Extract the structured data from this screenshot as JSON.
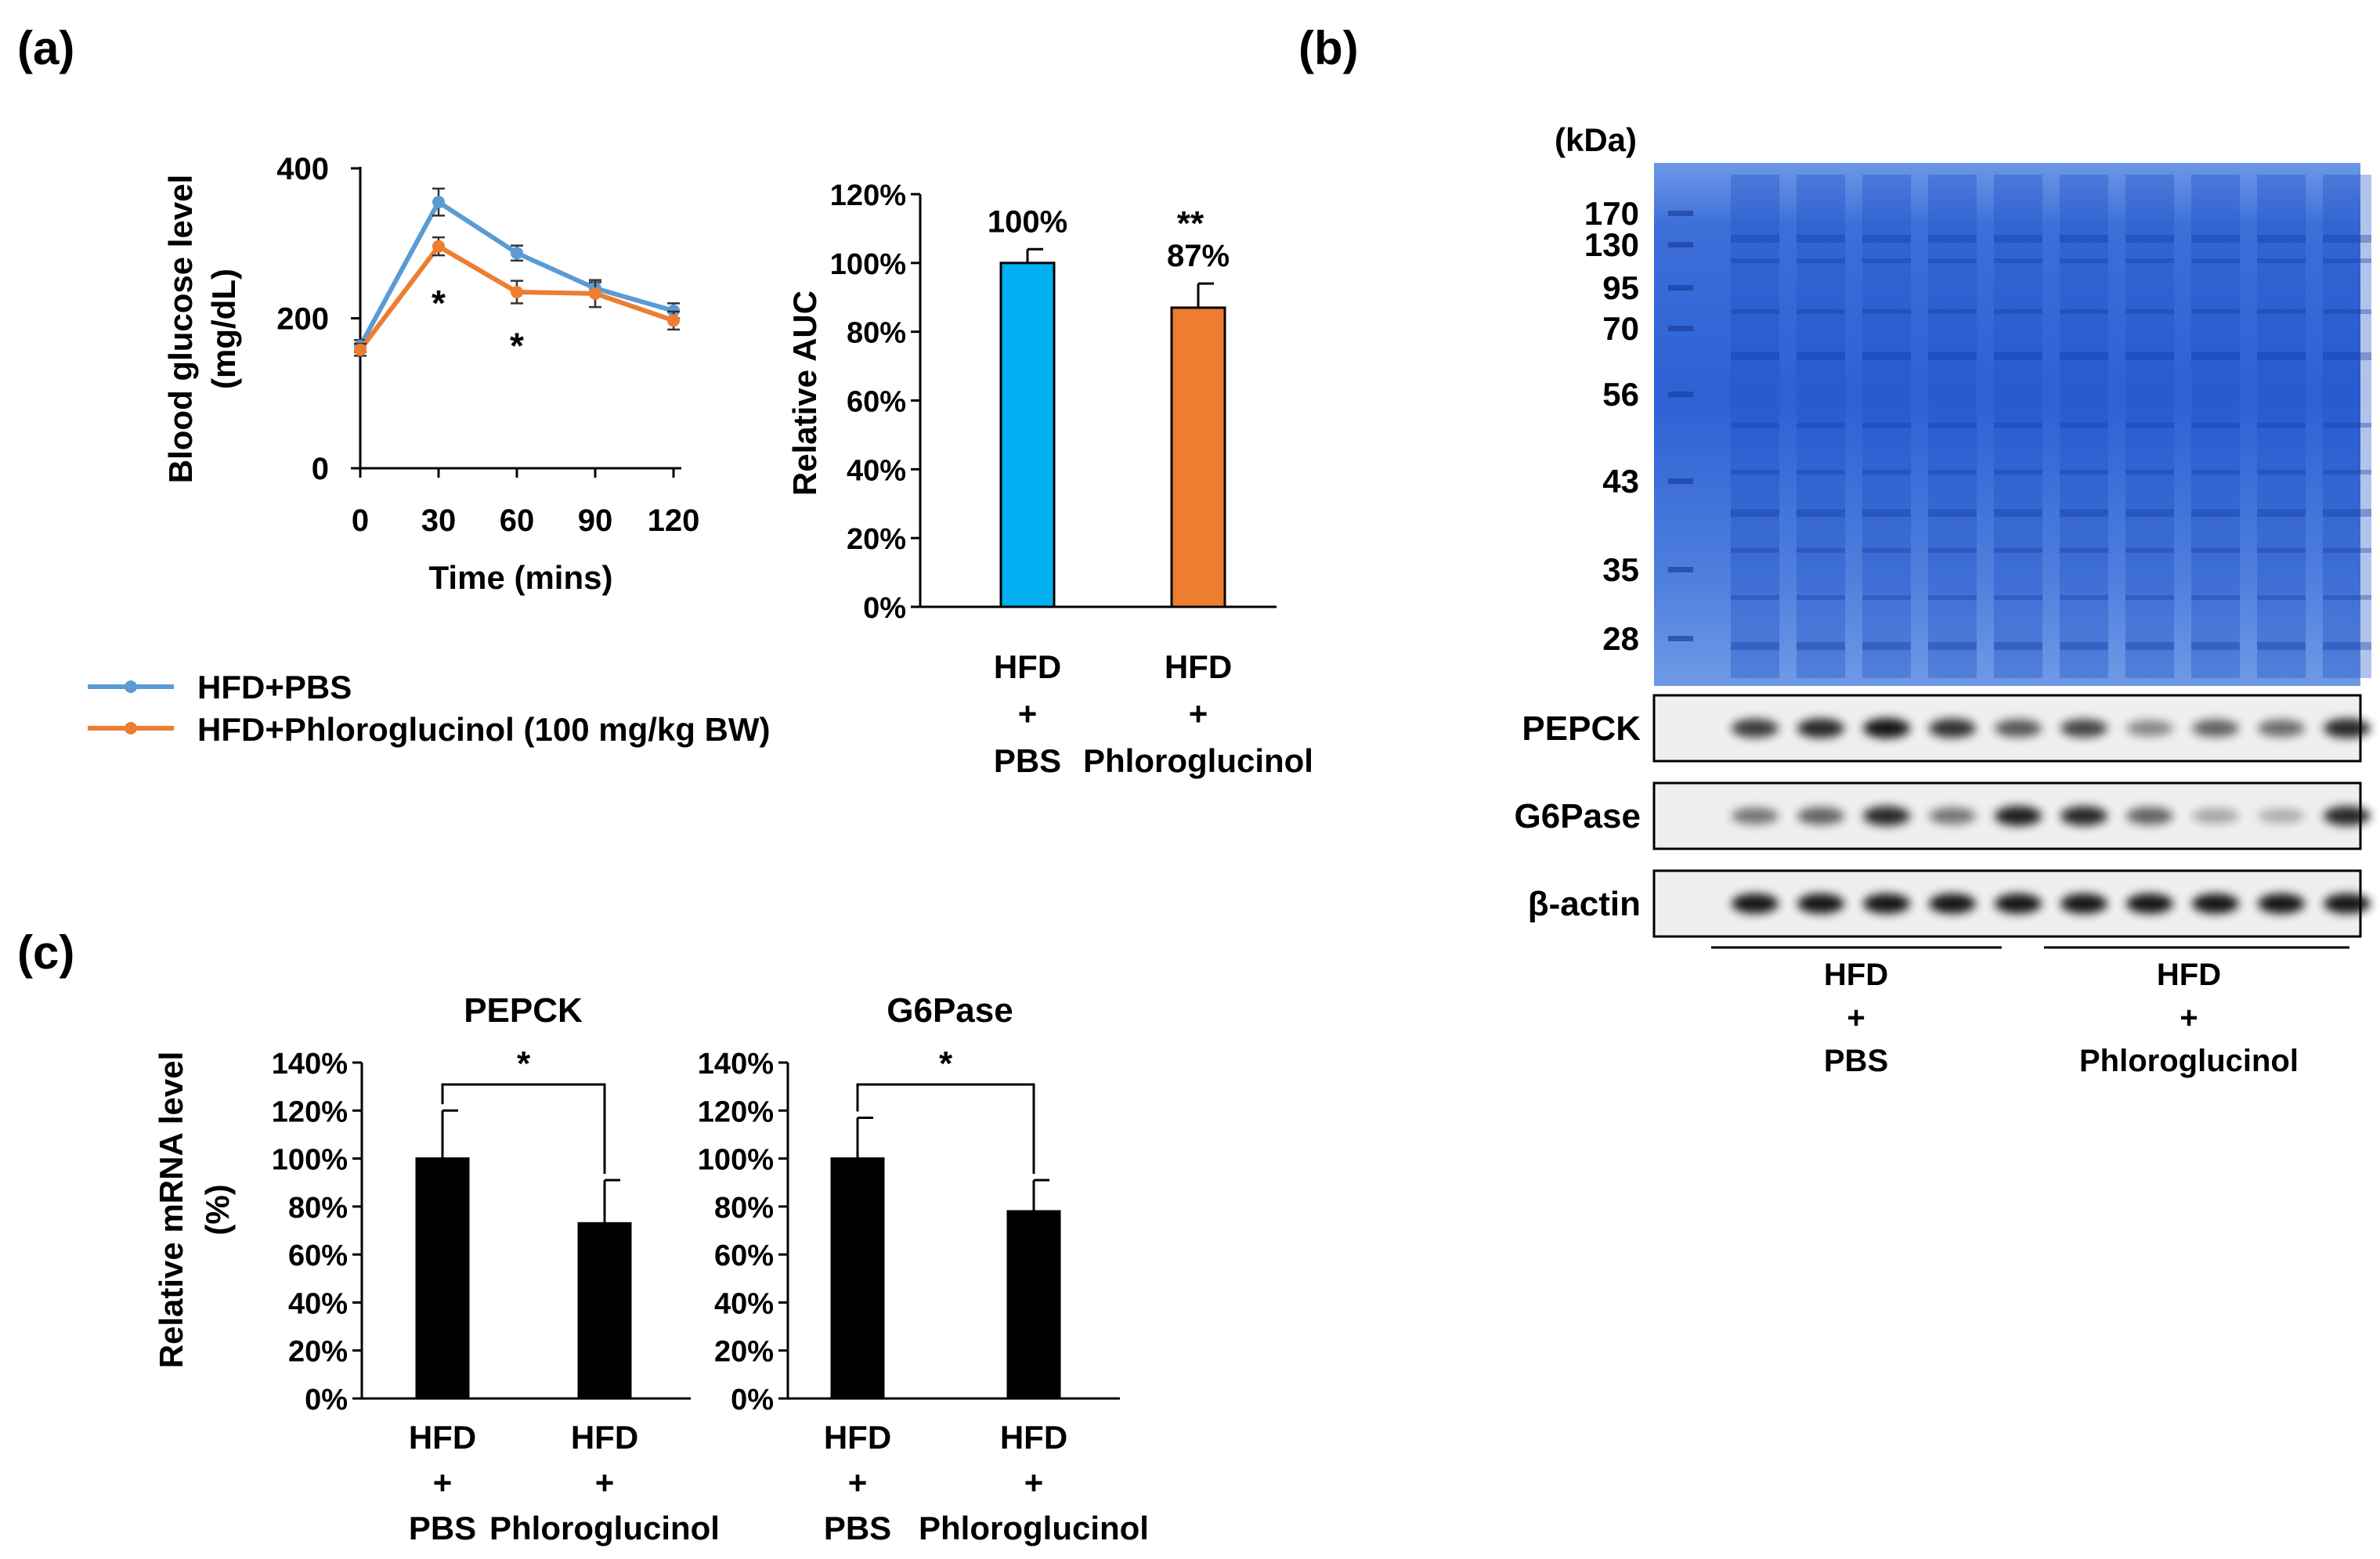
{
  "panels": {
    "a": "(a)",
    "b": "(b)",
    "c": "(c)"
  },
  "colors": {
    "pbs": "#5b9bd5",
    "phloro": "#ed7d31",
    "pbs_bar": "#00b0f0",
    "phloro_bar": "#ed7d31",
    "mrna_bar": "#000000",
    "gel_blue": "#3f73d6"
  },
  "legend": {
    "pbs": "HFD+PBS",
    "phloro": "HFD+Phloroglucinol  (100 mg/kg BW)"
  },
  "chart_data": [
    {
      "id": "ogtt",
      "type": "line",
      "xlabel": "Time  (mins)",
      "ylabel_lines": [
        "Blood glucose level",
        "(mg/dL)"
      ],
      "x": [
        0,
        30,
        60,
        90,
        120
      ],
      "x_ticks": [
        "0",
        "30",
        "60",
        "90",
        "120"
      ],
      "ylim": [
        0,
        400
      ],
      "y_ticks": [
        "0",
        "200",
        "400"
      ],
      "y_tick_values": [
        0,
        200,
        400
      ],
      "series": [
        {
          "name": "HFD+PBS",
          "values": [
            163,
            355,
            287,
            240,
            210
          ],
          "errors": [
            8,
            18,
            10,
            8,
            10
          ]
        },
        {
          "name": "HFD+Phloroglucinol  (100 mg/kg BW)",
          "values": [
            158,
            296,
            235,
            233,
            197
          ],
          "errors": [
            8,
            12,
            15,
            18,
            12
          ]
        }
      ],
      "annotations": [
        {
          "x": 30,
          "y": 235,
          "text": "*"
        },
        {
          "x": 60,
          "y": 178,
          "text": "*"
        }
      ]
    },
    {
      "id": "auc",
      "type": "bar",
      "ylabel": "Relative AUC",
      "ylim": [
        0,
        120
      ],
      "y_ticks": [
        "0%",
        "20%",
        "40%",
        "60%",
        "80%",
        "100%",
        "120%"
      ],
      "y_tick_values": [
        0,
        20,
        40,
        60,
        80,
        100,
        120
      ],
      "category_lines": [
        [
          "HFD",
          "+",
          "PBS"
        ],
        [
          "HFD",
          "+",
          "Phloroglucinol"
        ]
      ],
      "values": [
        100,
        87
      ],
      "errors": [
        4,
        7
      ],
      "data_labels": [
        "100%",
        "87%"
      ],
      "significance": [
        "",
        "**"
      ]
    },
    {
      "id": "pepck_mrna",
      "type": "bar",
      "title": "PEPCK",
      "ylabel_lines": [
        "Relative mRNA level",
        "(%)"
      ],
      "ylim": [
        0,
        140
      ],
      "y_ticks": [
        "0%",
        "20%",
        "40%",
        "60%",
        "80%",
        "100%",
        "120%",
        "140%"
      ],
      "y_tick_values": [
        0,
        20,
        40,
        60,
        80,
        100,
        120,
        140
      ],
      "category_lines": [
        [
          "HFD",
          "+",
          "PBS"
        ],
        [
          "HFD",
          "+",
          "Phloroglucinol"
        ]
      ],
      "values": [
        100,
        73
      ],
      "errors": [
        20,
        18
      ],
      "bracket_label": "*"
    },
    {
      "id": "g6pase_mrna",
      "type": "bar",
      "title": "G6Pase",
      "ylim": [
        0,
        140
      ],
      "y_ticks": [
        "0%",
        "20%",
        "40%",
        "60%",
        "80%",
        "100%",
        "120%",
        "140%"
      ],
      "y_tick_values": [
        0,
        20,
        40,
        60,
        80,
        100,
        120,
        140
      ],
      "category_lines": [
        [
          "HFD",
          "+",
          "PBS"
        ],
        [
          "HFD",
          "+",
          "Phloroglucinol"
        ]
      ],
      "values": [
        100,
        78
      ],
      "errors": [
        17,
        13
      ],
      "bracket_label": "*"
    }
  ],
  "blot": {
    "kda_label": "(kDa)",
    "markers": [
      "170",
      "130",
      "95",
      "70",
      "56",
      "43",
      "35",
      "28"
    ],
    "rows": [
      {
        "label": "PEPCK",
        "intensities": [
          0.75,
          0.85,
          0.95,
          0.8,
          0.6,
          0.7,
          0.35,
          0.55,
          0.5,
          0.85
        ]
      },
      {
        "label": "G6Pase",
        "intensities": [
          0.45,
          0.55,
          0.85,
          0.45,
          0.9,
          0.85,
          0.55,
          0.2,
          0.15,
          0.85
        ]
      },
      {
        "label": "β-actin",
        "intensities": [
          0.95,
          0.95,
          0.95,
          0.95,
          0.95,
          0.95,
          0.95,
          0.95,
          0.95,
          0.95
        ]
      }
    ],
    "groups": [
      {
        "lines": [
          "HFD",
          "+",
          "PBS"
        ]
      },
      {
        "lines": [
          "HFD",
          "+",
          "Phloroglucinol"
        ]
      }
    ]
  }
}
